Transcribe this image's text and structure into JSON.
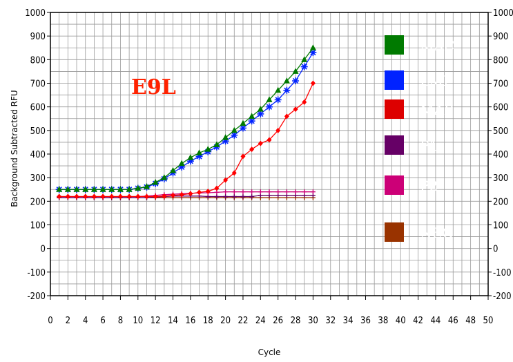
{
  "chart_data": {
    "type": "line",
    "title": "",
    "annotation": "E9L",
    "xlabel": "Cycle",
    "ylabel": "Background Subtracted RFU",
    "xlim": [
      0,
      50
    ],
    "ylim": [
      -200,
      1000
    ],
    "x_ticks": [
      "0",
      "2",
      "4",
      "6",
      "8",
      "10",
      "12",
      "14",
      "16",
      "18",
      "20",
      "22",
      "24",
      "26",
      "28",
      "30",
      "32",
      "34",
      "36",
      "38",
      "40",
      "42",
      "44",
      "46",
      "48",
      "50"
    ],
    "y_ticks": [
      "-200",
      "-100",
      "0",
      "100",
      "200",
      "300",
      "400",
      "500",
      "600",
      "700",
      "800",
      "900",
      "1000"
    ],
    "grid": true,
    "legend_position": "right",
    "series": [
      {
        "name": "MAC",
        "color": "#007a00",
        "marker": "triangle",
        "x": [
          1,
          2,
          3,
          4,
          5,
          6,
          7,
          8,
          9,
          10,
          11,
          12,
          13,
          14,
          15,
          16,
          17,
          18,
          19,
          20,
          21,
          22,
          23,
          24,
          25,
          26,
          27,
          28,
          29,
          30
        ],
        "y": [
          250,
          250,
          250,
          250,
          250,
          250,
          250,
          250,
          250,
          255,
          262,
          280,
          300,
          330,
          360,
          385,
          405,
          420,
          440,
          470,
          500,
          530,
          560,
          590,
          630,
          670,
          710,
          750,
          800,
          850
        ]
      },
      {
        "name": "LMP",
        "color": "#0022ff",
        "marker": "asterisk",
        "x": [
          1,
          2,
          3,
          4,
          5,
          6,
          7,
          8,
          9,
          10,
          11,
          12,
          13,
          14,
          15,
          16,
          17,
          18,
          19,
          20,
          21,
          22,
          23,
          24,
          25,
          26,
          27,
          28,
          29,
          30
        ],
        "y": [
          250,
          250,
          250,
          250,
          250,
          250,
          250,
          250,
          250,
          255,
          260,
          275,
          295,
          320,
          345,
          370,
          390,
          410,
          430,
          455,
          480,
          510,
          540,
          570,
          600,
          630,
          670,
          710,
          770,
          830
        ]
      },
      {
        "name": "MAP",
        "color": "#ff0000",
        "marker": "diamond",
        "x": [
          1,
          2,
          3,
          4,
          5,
          6,
          7,
          8,
          9,
          10,
          11,
          12,
          13,
          14,
          15,
          16,
          17,
          18,
          19,
          20,
          21,
          22,
          23,
          24,
          25,
          26,
          27,
          28,
          29,
          30
        ],
        "y": [
          220,
          220,
          220,
          220,
          220,
          220,
          220,
          220,
          220,
          220,
          220,
          220,
          222,
          225,
          228,
          232,
          238,
          242,
          255,
          290,
          320,
          390,
          420,
          445,
          460,
          500,
          560,
          590,
          620,
          700
        ]
      },
      {
        "name": "P1",
        "color": "#660066",
        "marker": "plus",
        "x": [
          1,
          2,
          3,
          4,
          5,
          6,
          7,
          8,
          9,
          10,
          11,
          12,
          13,
          14,
          15,
          16,
          17,
          18,
          19,
          20,
          21,
          22,
          23,
          24,
          25,
          26,
          27,
          28,
          29,
          30
        ],
        "y": [
          215,
          215,
          215,
          215,
          215,
          215,
          215,
          215,
          215,
          215,
          215,
          218,
          220,
          222,
          222,
          222,
          222,
          220,
          220,
          220,
          220,
          220,
          220,
          225,
          225,
          225,
          225,
          225,
          225,
          225
        ]
      },
      {
        "name": "P2",
        "color": "#cc0077",
        "marker": "plus",
        "x": [
          1,
          2,
          3,
          4,
          5,
          6,
          7,
          8,
          9,
          10,
          11,
          12,
          13,
          14,
          15,
          16,
          17,
          18,
          19,
          20,
          21,
          22,
          23,
          24,
          25,
          26,
          27,
          28,
          29,
          30
        ],
        "y": [
          220,
          220,
          220,
          220,
          220,
          220,
          220,
          220,
          220,
          220,
          222,
          225,
          228,
          230,
          232,
          234,
          235,
          236,
          238,
          240,
          240,
          240,
          240,
          240,
          240,
          240,
          240,
          240,
          240,
          240
        ]
      },
      {
        "name": "NEG",
        "color": "#993300",
        "marker": "plus",
        "x": [
          1,
          2,
          3,
          4,
          5,
          6,
          7,
          8,
          9,
          10,
          11,
          12,
          13,
          14,
          15,
          16,
          17,
          18,
          19,
          20,
          21,
          22,
          23,
          24,
          25,
          26,
          27,
          28,
          29,
          30
        ],
        "y": [
          215,
          215,
          215,
          215,
          215,
          215,
          215,
          215,
          215,
          215,
          215,
          215,
          215,
          215,
          215,
          215,
          215,
          215,
          215,
          215,
          215,
          215,
          215,
          215,
          215,
          215,
          215,
          215,
          215,
          215
        ]
      }
    ],
    "legend": [
      {
        "label": "MAC",
        "color": "#007a00"
      },
      {
        "label": "LMP",
        "color": "#0022ff"
      },
      {
        "label": "MAP",
        "color": "#dd0000"
      },
      {
        "label": "P1",
        "color": "#660066"
      },
      {
        "label": "P2",
        "color": "#cc0077"
      },
      {
        "label": "NEG",
        "color": "#993300"
      }
    ]
  }
}
